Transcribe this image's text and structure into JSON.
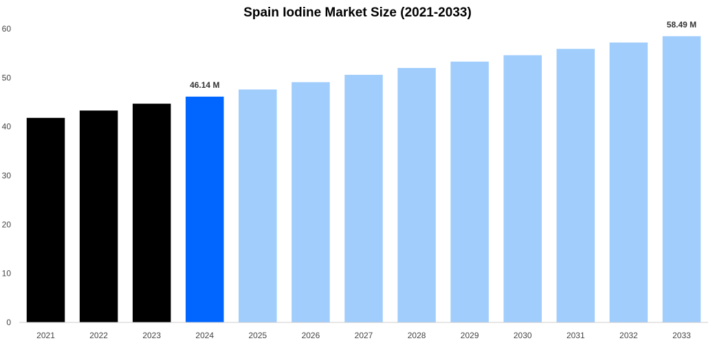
{
  "chart_data": {
    "type": "bar",
    "title": "Spain Iodine Market Size (2021-2033)",
    "categories": [
      "2021",
      "2022",
      "2023",
      "2024",
      "2025",
      "2026",
      "2027",
      "2028",
      "2029",
      "2030",
      "2031",
      "2032",
      "2033"
    ],
    "values": [
      41.8,
      43.3,
      44.7,
      46.14,
      47.6,
      49.1,
      50.6,
      52.0,
      53.3,
      54.6,
      55.9,
      57.2,
      58.49
    ],
    "bar_colors": [
      "#000000",
      "#000000",
      "#000000",
      "#0066ff",
      "#a0cdfc",
      "#a0cdfc",
      "#a0cdfc",
      "#a0cdfc",
      "#a0cdfc",
      "#a0cdfc",
      "#a0cdfc",
      "#a0cdfc",
      "#a0cdfc"
    ],
    "data_labels": [
      {
        "category": "2024",
        "text": "46.14 M"
      },
      {
        "category": "2033",
        "text": "58.49 M"
      }
    ],
    "yticks": [
      0,
      10,
      20,
      30,
      40,
      50,
      60
    ],
    "ylim": [
      0,
      60
    ],
    "xlabel": "",
    "ylabel": "",
    "grid": false,
    "legend": "none"
  }
}
